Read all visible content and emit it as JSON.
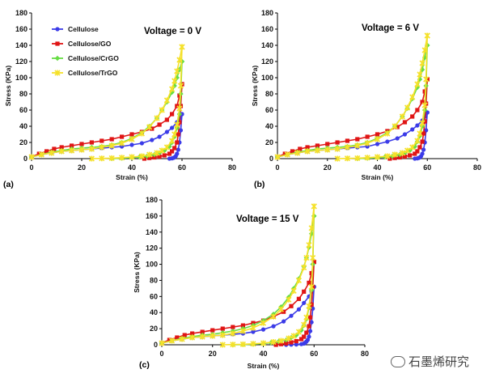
{
  "colors": {
    "Cellulose": "#3b3be8",
    "Cellulose/GO": "#e01515",
    "Cellulose/CrGO": "#66dd44",
    "Cellulose/TrGO": "#f5e12a",
    "axis": "#000000"
  },
  "watermark": "石墨烯研究",
  "chart_data": [
    {
      "type": "line",
      "panel_label": "(a)",
      "annotation": "Voltage = 0 V",
      "xlabel": "Strain (%)",
      "ylabel": "Stress (KPa)",
      "xlim": [
        0,
        80
      ],
      "ylim": [
        0,
        180
      ],
      "xticks": [
        0,
        20,
        40,
        60,
        80
      ],
      "yticks": [
        0,
        20,
        40,
        60,
        80,
        100,
        120,
        140,
        160,
        180
      ],
      "legend": [
        "Cellulose",
        "Cellulose/GO",
        "Cellulose/CrGO",
        "Cellulose/TrGO"
      ],
      "series": [
        {
          "name": "Cellulose",
          "marker": "circle",
          "load_x": [
            0,
            4,
            8,
            12,
            16,
            20,
            24,
            28,
            32,
            36,
            40,
            44,
            48,
            51,
            54,
            56,
            58,
            59,
            60
          ],
          "load_y": [
            2,
            5,
            7,
            9,
            10,
            11,
            12,
            13,
            14,
            15,
            17,
            19,
            23,
            27,
            33,
            38,
            45,
            50,
            55
          ],
          "unload_x": [
            60,
            59.5,
            59,
            58.5,
            58,
            57.5,
            57,
            56.5,
            56,
            55
          ],
          "unload_y": [
            55,
            35,
            20,
            11,
            6,
            3,
            1.5,
            0.8,
            0.3,
            0
          ]
        },
        {
          "name": "Cellulose/GO",
          "marker": "square",
          "load_x": [
            0,
            3,
            6,
            9,
            12,
            16,
            20,
            24,
            28,
            32,
            36,
            40,
            44,
            48,
            51,
            54,
            56,
            58,
            59,
            60
          ],
          "load_y": [
            2,
            6,
            9,
            12,
            14,
            16,
            18,
            20,
            22,
            24,
            27,
            30,
            33,
            37,
            42,
            48,
            55,
            65,
            78,
            92
          ],
          "unload_x": [
            60,
            59.5,
            59,
            58.5,
            58,
            57,
            56,
            55,
            53,
            51,
            49,
            47,
            45
          ],
          "unload_y": [
            92,
            65,
            45,
            30,
            20,
            13,
            9,
            6,
            4,
            2.5,
            1.5,
            0.8,
            0
          ]
        },
        {
          "name": "Cellulose/CrGO",
          "marker": "diamond",
          "load_x": [
            0,
            4,
            8,
            12,
            16,
            20,
            24,
            28,
            32,
            36,
            40,
            44,
            47,
            50,
            52,
            54,
            56,
            57,
            58,
            59,
            60
          ],
          "load_y": [
            2,
            5,
            8,
            10,
            12,
            13,
            14,
            15,
            17,
            20,
            25,
            32,
            40,
            50,
            60,
            70,
            82,
            90,
            100,
            110,
            120
          ],
          "unload_x": [
            60,
            59.5,
            59,
            58,
            57,
            56,
            55,
            53,
            51,
            49,
            46,
            43,
            40,
            36,
            32
          ],
          "unload_y": [
            120,
            80,
            55,
            38,
            27,
            20,
            15,
            10,
            7,
            5,
            3,
            2,
            1.2,
            0.5,
            0
          ]
        },
        {
          "name": "Cellulose/TrGO",
          "marker": "cross",
          "load_x": [
            0,
            4,
            8,
            12,
            16,
            20,
            24,
            28,
            32,
            36,
            40,
            44,
            47,
            50,
            52,
            54,
            56,
            57,
            58,
            59,
            60
          ],
          "load_y": [
            2,
            5,
            7,
            9,
            10,
            11,
            12,
            14,
            16,
            19,
            24,
            31,
            39,
            50,
            60,
            72,
            86,
            96,
            108,
            122,
            138
          ],
          "unload_x": [
            60,
            59.5,
            59,
            58,
            57,
            56,
            54,
            52,
            50,
            47,
            44,
            40,
            36,
            32,
            28,
            24
          ],
          "unload_y": [
            138,
            90,
            62,
            42,
            30,
            22,
            14,
            10,
            7,
            5,
            3,
            2,
            1.2,
            0.6,
            0.3,
            0
          ]
        }
      ]
    },
    {
      "type": "line",
      "panel_label": "(b)",
      "annotation": "Voltage = 6 V",
      "xlabel": "Strain (%)",
      "ylabel": "Stress (KPa)",
      "xlim": [
        0,
        80
      ],
      "ylim": [
        0,
        180
      ],
      "xticks": [
        0,
        20,
        40,
        60,
        80
      ],
      "yticks": [
        0,
        20,
        40,
        60,
        80,
        100,
        120,
        140,
        160,
        180
      ],
      "series": [
        {
          "name": "Cellulose",
          "marker": "circle",
          "load_x": [
            0,
            4,
            8,
            12,
            16,
            20,
            24,
            28,
            32,
            36,
            40,
            44,
            48,
            51,
            54,
            56,
            58,
            59,
            60
          ],
          "load_y": [
            2,
            5,
            7,
            9,
            10,
            11,
            12,
            13,
            14,
            15,
            18,
            21,
            25,
            30,
            36,
            41,
            47,
            52,
            57
          ],
          "unload_x": [
            60,
            59.5,
            59,
            58.5,
            58,
            57.5,
            57,
            56.5,
            56,
            55
          ],
          "unload_y": [
            57,
            35,
            20,
            11,
            6,
            3,
            1.5,
            0.8,
            0.3,
            0
          ]
        },
        {
          "name": "Cellulose/GO",
          "marker": "square",
          "load_x": [
            0,
            3,
            6,
            9,
            12,
            16,
            20,
            24,
            28,
            32,
            36,
            40,
            44,
            48,
            51,
            54,
            56,
            58,
            59,
            60
          ],
          "load_y": [
            2,
            6,
            9,
            12,
            14,
            16,
            18,
            20,
            22,
            24,
            27,
            30,
            34,
            39,
            45,
            52,
            60,
            70,
            83,
            98
          ],
          "unload_x": [
            60,
            59.5,
            59,
            58.5,
            58,
            57,
            56,
            55,
            53,
            51,
            49,
            47,
            45
          ],
          "unload_y": [
            98,
            68,
            46,
            31,
            21,
            14,
            9,
            6,
            4,
            2.5,
            1.5,
            0.8,
            0
          ]
        },
        {
          "name": "Cellulose/CrGO",
          "marker": "diamond",
          "load_x": [
            0,
            4,
            8,
            12,
            16,
            20,
            24,
            28,
            32,
            36,
            40,
            44,
            47,
            50,
            52,
            54,
            56,
            57,
            58,
            59,
            60
          ],
          "load_y": [
            2,
            5,
            8,
            10,
            12,
            13,
            14,
            15,
            17,
            20,
            25,
            32,
            40,
            52,
            62,
            74,
            88,
            98,
            110,
            125,
            140
          ],
          "unload_x": [
            60,
            59.5,
            59,
            58,
            57,
            56,
            55,
            53,
            51,
            49,
            46,
            43,
            40,
            36,
            32
          ],
          "unload_y": [
            140,
            90,
            60,
            40,
            28,
            21,
            15,
            10,
            7,
            5,
            3,
            2,
            1.2,
            0.5,
            0
          ]
        },
        {
          "name": "Cellulose/TrGO",
          "marker": "cross",
          "load_x": [
            0,
            4,
            8,
            12,
            16,
            20,
            24,
            28,
            32,
            36,
            40,
            44,
            47,
            50,
            52,
            54,
            56,
            57,
            58,
            59,
            60
          ],
          "load_y": [
            2,
            5,
            7,
            9,
            10,
            11,
            12,
            14,
            16,
            19,
            24,
            31,
            40,
            52,
            63,
            76,
            92,
            104,
            118,
            134,
            152
          ],
          "unload_x": [
            60,
            59.5,
            59,
            58,
            57,
            56,
            54,
            52,
            50,
            47,
            44,
            40,
            36,
            32,
            28,
            24
          ],
          "unload_y": [
            152,
            98,
            66,
            44,
            31,
            22,
            14,
            10,
            7,
            5,
            3,
            2,
            1.2,
            0.6,
            0.3,
            0
          ]
        }
      ]
    },
    {
      "type": "line",
      "panel_label": "(c)",
      "annotation": "Voltage = 15 V",
      "xlabel": "Strain (%)",
      "ylabel": "Stress (KPa)",
      "xlim": [
        0,
        80
      ],
      "ylim": [
        0,
        180
      ],
      "xticks": [
        0,
        20,
        40,
        60,
        80
      ],
      "yticks": [
        0,
        20,
        40,
        60,
        80,
        100,
        120,
        140,
        160,
        180
      ],
      "series": [
        {
          "name": "Cellulose",
          "marker": "circle",
          "load_x": [
            0,
            4,
            8,
            12,
            16,
            20,
            24,
            28,
            32,
            36,
            40,
            44,
            48,
            51,
            54,
            56,
            58,
            59,
            60
          ],
          "load_y": [
            2,
            5,
            7,
            9,
            10,
            11,
            12,
            13,
            14,
            16,
            19,
            23,
            29,
            36,
            44,
            52,
            60,
            66,
            72
          ],
          "unload_x": [
            60,
            59.5,
            59,
            58.5,
            58,
            57.5,
            57,
            56.5,
            56,
            55,
            53,
            51,
            49
          ],
          "unload_y": [
            72,
            45,
            28,
            17,
            10,
            6,
            4,
            2.5,
            1.5,
            0.8,
            0.4,
            0.2,
            0
          ]
        },
        {
          "name": "Cellulose/GO",
          "marker": "square",
          "load_x": [
            0,
            3,
            6,
            9,
            12,
            16,
            20,
            24,
            28,
            32,
            36,
            40,
            44,
            48,
            51,
            54,
            56,
            58,
            59,
            60
          ],
          "load_y": [
            2,
            6,
            9,
            12,
            14,
            16,
            18,
            20,
            22,
            24,
            27,
            30,
            35,
            41,
            48,
            57,
            66,
            77,
            89,
            103
          ],
          "unload_x": [
            60,
            59.5,
            59,
            58.5,
            58,
            57,
            56,
            55,
            53,
            51,
            49,
            47,
            45
          ],
          "unload_y": [
            103,
            72,
            50,
            34,
            23,
            15,
            10,
            7,
            4.5,
            3,
            1.8,
            0.8,
            0
          ]
        },
        {
          "name": "Cellulose/CrGO",
          "marker": "diamond",
          "load_x": [
            0,
            4,
            8,
            12,
            16,
            20,
            24,
            28,
            32,
            36,
            40,
            44,
            47,
            50,
            52,
            54,
            56,
            57,
            58,
            59,
            60
          ],
          "load_y": [
            2,
            5,
            8,
            10,
            12,
            13,
            15,
            17,
            20,
            24,
            30,
            38,
            47,
            59,
            70,
            82,
            97,
            108,
            121,
            138,
            160
          ],
          "unload_x": [
            60,
            59.5,
            59,
            58,
            57,
            56,
            55,
            53,
            51,
            49,
            46,
            43,
            40,
            36,
            32,
            28
          ],
          "unload_y": [
            160,
            100,
            68,
            46,
            32,
            24,
            18,
            12,
            9,
            6,
            4,
            2.5,
            1.5,
            0.7,
            0.2,
            0
          ]
        },
        {
          "name": "Cellulose/TrGO",
          "marker": "cross",
          "load_x": [
            0,
            4,
            8,
            12,
            16,
            20,
            24,
            28,
            32,
            36,
            40,
            44,
            47,
            50,
            52,
            54,
            56,
            57,
            58,
            59,
            60
          ],
          "load_y": [
            2,
            5,
            7,
            9,
            10,
            11,
            12,
            14,
            17,
            21,
            27,
            35,
            44,
            56,
            67,
            80,
            96,
            108,
            124,
            145,
            172
          ],
          "unload_x": [
            60,
            59.5,
            59,
            58,
            57,
            56,
            54,
            52,
            50,
            47,
            44,
            40,
            36,
            32,
            28,
            24
          ],
          "unload_y": [
            172,
            108,
            72,
            48,
            34,
            25,
            16,
            11,
            8,
            5,
            3.5,
            2,
            1.2,
            0.6,
            0.3,
            0
          ]
        }
      ]
    }
  ]
}
